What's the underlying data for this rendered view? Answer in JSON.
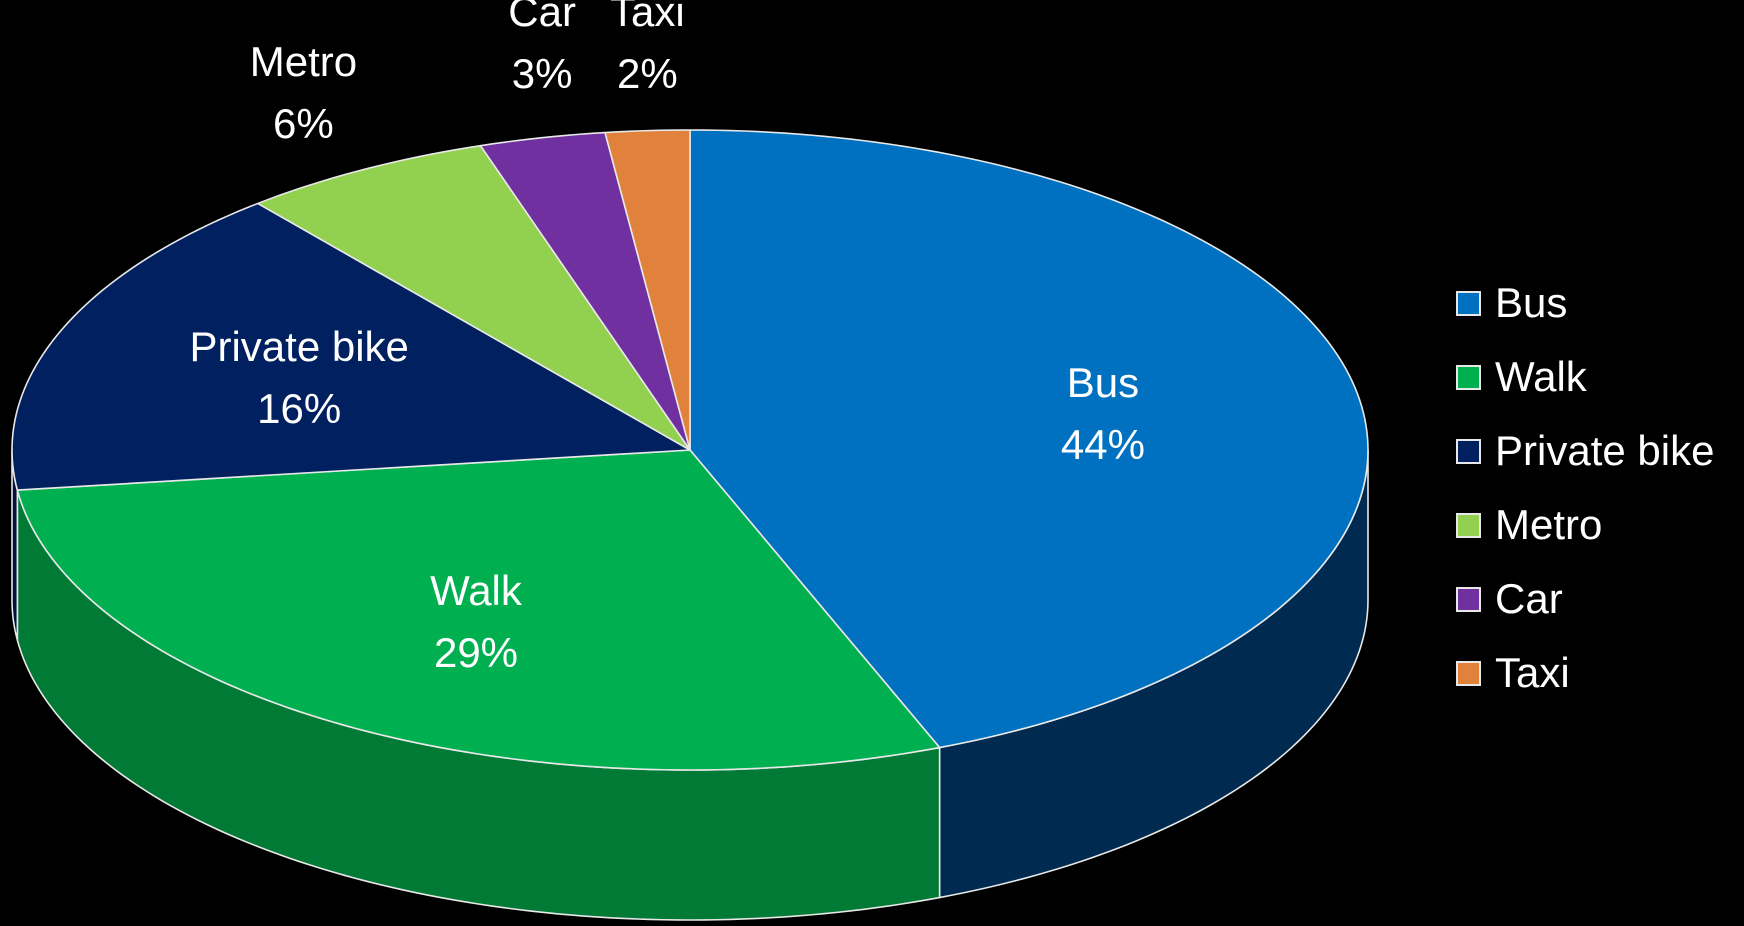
{
  "chart_data": {
    "type": "pie",
    "style": "3d",
    "title": "",
    "legend_position": "right",
    "slices": [
      {
        "label": "Bus",
        "value": 44,
        "percent_label": "44%",
        "color": "#0070C0",
        "side_color": "#002A4F"
      },
      {
        "label": "Walk",
        "value": 29,
        "percent_label": "29%",
        "color": "#00B050",
        "side_color": "#007A35"
      },
      {
        "label": "Private bike",
        "value": 16,
        "percent_label": "16%",
        "color": "#002060",
        "side_color": "#001338"
      },
      {
        "label": "Metro",
        "value": 6,
        "percent_label": "6%",
        "color": "#92D050",
        "side_color": "#5E8A30"
      },
      {
        "label": "Car",
        "value": 3,
        "percent_label": "3%",
        "color": "#7030A0",
        "side_color": "#45186A"
      },
      {
        "label": "Taxi",
        "value": 2,
        "percent_label": "2%",
        "color": "#E0823C",
        "side_color": "#9A5420"
      }
    ],
    "label_color": "#FFFFFF",
    "border_color": "#E8E8E8",
    "background": "#000000"
  }
}
